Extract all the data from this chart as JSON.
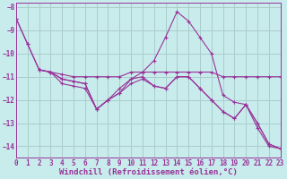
{
  "background_color": "#c8ecec",
  "grid_color": "#aacccc",
  "line_color": "#993399",
  "marker": "+",
  "series": [
    {
      "x": [
        0,
        1,
        2,
        3,
        4,
        5,
        6,
        7,
        8,
        9,
        10,
        11,
        12,
        13,
        14,
        15,
        16,
        17,
        18,
        19,
        20,
        21,
        22,
        23
      ],
      "y": [
        -8.5,
        -9.6,
        -10.7,
        -10.8,
        -10.9,
        -11.0,
        -11.0,
        -11.0,
        -11.0,
        -11.0,
        -10.8,
        -10.8,
        -10.8,
        -10.8,
        -10.8,
        -10.8,
        -10.8,
        -10.8,
        -11.0,
        -11.0,
        -11.0,
        -11.0,
        -11.0,
        -11.0
      ]
    },
    {
      "x": [
        2,
        3,
        4,
        5,
        6,
        7,
        8,
        9,
        10,
        11,
        12,
        13,
        14,
        15,
        16,
        17,
        18,
        19,
        20,
        21,
        22,
        23
      ],
      "y": [
        -10.7,
        -10.8,
        -11.1,
        -11.2,
        -11.3,
        -12.4,
        -12.0,
        -11.7,
        -11.1,
        -10.8,
        -10.3,
        -9.3,
        -8.2,
        -8.6,
        -9.3,
        -10.0,
        -11.8,
        -12.1,
        -12.2,
        -13.2,
        -14.0,
        -14.1
      ]
    },
    {
      "x": [
        0,
        1,
        2,
        3,
        4,
        5,
        6,
        7,
        8,
        9,
        10,
        11,
        12,
        13,
        14,
        15,
        16,
        17,
        18,
        19,
        20,
        21,
        22,
        23
      ],
      "y": [
        -8.5,
        -9.6,
        -10.7,
        -10.8,
        -11.1,
        -11.2,
        -11.3,
        -12.4,
        -12.0,
        -11.5,
        -11.1,
        -11.0,
        -11.4,
        -11.5,
        -11.0,
        -11.0,
        -11.5,
        -12.0,
        -12.5,
        -12.8,
        -12.2,
        -13.0,
        -13.9,
        -14.1
      ]
    },
    {
      "x": [
        2,
        3,
        4,
        5,
        6,
        7,
        8,
        9,
        10,
        11,
        12,
        13,
        14,
        15,
        16,
        17,
        18,
        19,
        20,
        21,
        22,
        23
      ],
      "y": [
        -10.7,
        -10.8,
        -11.3,
        -11.4,
        -11.5,
        -12.4,
        -12.0,
        -11.7,
        -11.3,
        -11.1,
        -11.4,
        -11.5,
        -11.0,
        -11.0,
        -11.5,
        -12.0,
        -12.5,
        -12.8,
        -12.2,
        -13.0,
        -13.9,
        -14.1
      ]
    }
  ],
  "xlim": [
    0,
    23
  ],
  "ylim": [
    -14.5,
    -7.8
  ],
  "yticks": [
    -8,
    -9,
    -10,
    -11,
    -12,
    -13,
    -14
  ],
  "xticks": [
    0,
    1,
    2,
    3,
    4,
    5,
    6,
    7,
    8,
    9,
    10,
    11,
    12,
    13,
    14,
    15,
    16,
    17,
    18,
    19,
    20,
    21,
    22,
    23
  ],
  "xlabel": "Windchill (Refroidissement éolien,°C)",
  "xlabel_fontsize": 6.5,
  "tick_fontsize": 5.5,
  "title": ""
}
